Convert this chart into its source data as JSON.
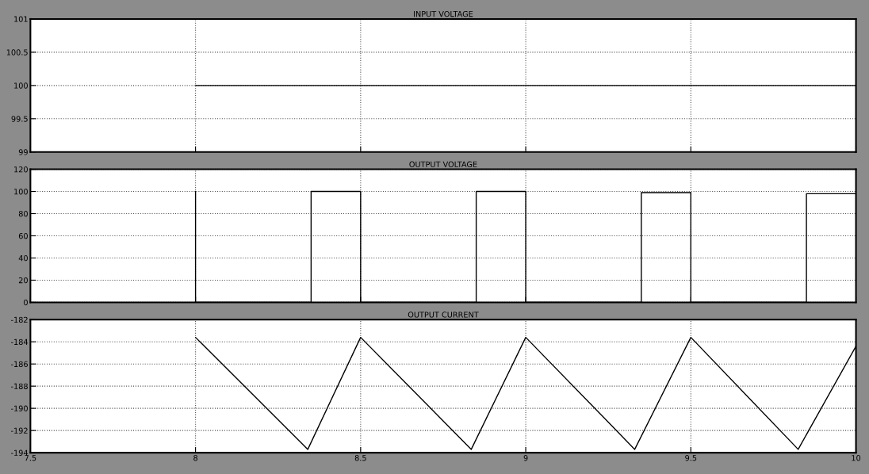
{
  "chart_data": [
    {
      "type": "line",
      "title": "INPUT VOLTAGE",
      "x": [
        8,
        10
      ],
      "series": [
        {
          "color": "#000000",
          "values": [
            100,
            100
          ]
        }
      ],
      "xlim": [
        7.5,
        10
      ],
      "xticks": [
        7.5,
        8,
        8.5,
        9,
        9.5,
        10
      ],
      "ylim": [
        99,
        101
      ],
      "yticks": [
        99,
        99.5,
        100,
        100.5,
        101
      ],
      "grid": true,
      "tick_labels": "y"
    },
    {
      "type": "line",
      "title": "OUTPUT VOLTAGE",
      "x": [
        8,
        8,
        8.35,
        8.35,
        8.5,
        8.5,
        8.85,
        8.85,
        9,
        9,
        9.35,
        9.35,
        9.5,
        9.5,
        9.85,
        9.85,
        10
      ],
      "series": [
        {
          "color": "#000000",
          "values": [
            100,
            0,
            0,
            100,
            100,
            0,
            0,
            100,
            100,
            0,
            0,
            99,
            99,
            0,
            0,
            98,
            98
          ]
        }
      ],
      "xlim": [
        7.5,
        10
      ],
      "xticks": [
        7.5,
        8,
        8.5,
        9,
        9.5,
        10
      ],
      "ylim": [
        0,
        120
      ],
      "yticks": [
        0,
        20,
        40,
        60,
        80,
        100,
        120
      ],
      "grid": true,
      "tick_labels": "y"
    },
    {
      "type": "line",
      "title": "OUTPUT CURRENT",
      "x": [
        8,
        8.34,
        8.5,
        8.835,
        9,
        9.33,
        9.5,
        9.825,
        10
      ],
      "series": [
        {
          "color": "#000000",
          "values": [
            -183.6,
            -193.7,
            -183.6,
            -193.7,
            -183.6,
            -193.7,
            -183.6,
            -193.7,
            -184.4
          ]
        }
      ],
      "xlim": [
        7.5,
        10
      ],
      "xticks": [
        7.5,
        8,
        8.5,
        9,
        9.5,
        10
      ],
      "ylim": [
        -194,
        -182
      ],
      "yticks": [
        -194,
        -192,
        -190,
        -188,
        -186,
        -184,
        -182
      ],
      "grid": true
    }
  ]
}
